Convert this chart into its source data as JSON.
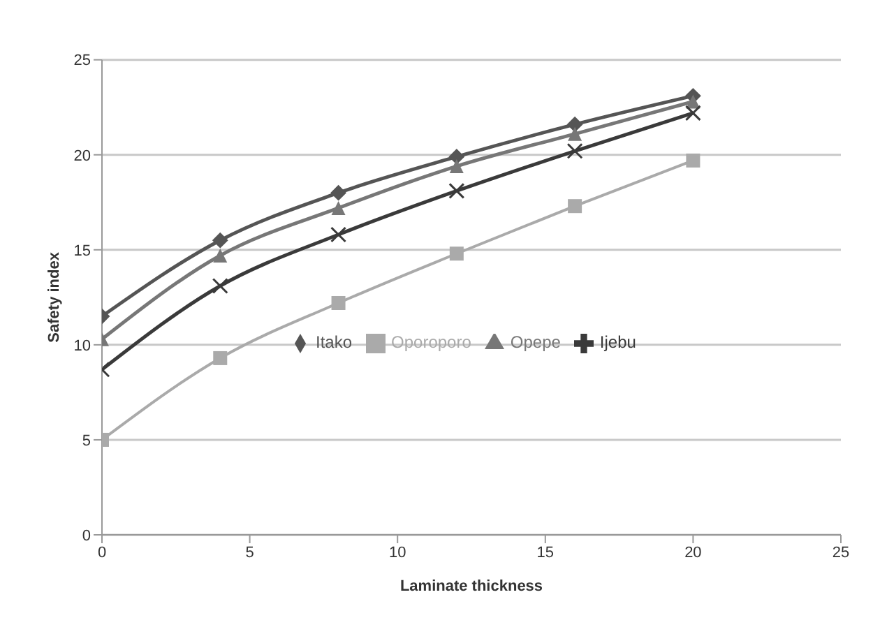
{
  "chart_data": {
    "type": "line",
    "xlabel": "Laminate thickness",
    "ylabel": "Safety index",
    "x": [
      0,
      4,
      8,
      12,
      16,
      20
    ],
    "series": [
      {
        "name": "Itako",
        "color": "#555555",
        "marker": "diamond",
        "values": [
          11.5,
          15.5,
          18.0,
          19.9,
          21.6,
          23.1
        ]
      },
      {
        "name": "Oporoporo",
        "color": "#aaaaaa",
        "marker": "square",
        "values": [
          5.0,
          9.3,
          12.2,
          14.8,
          17.3,
          19.7
        ]
      },
      {
        "name": "Opepe",
        "color": "#777777",
        "marker": "triangle",
        "values": [
          10.3,
          14.7,
          17.2,
          19.4,
          21.1,
          22.8
        ]
      },
      {
        "name": "Ijebu",
        "color": "#3a3a3a",
        "marker": "cross",
        "values": [
          8.7,
          13.1,
          15.8,
          18.1,
          20.2,
          22.2
        ]
      }
    ],
    "xlim": [
      0,
      25
    ],
    "xticks": [
      0,
      5,
      10,
      15,
      20,
      25
    ],
    "ylim": [
      0,
      25
    ],
    "yticks": [
      0,
      5,
      10,
      15,
      20,
      25
    ],
    "grid": "y",
    "legend": "center"
  }
}
